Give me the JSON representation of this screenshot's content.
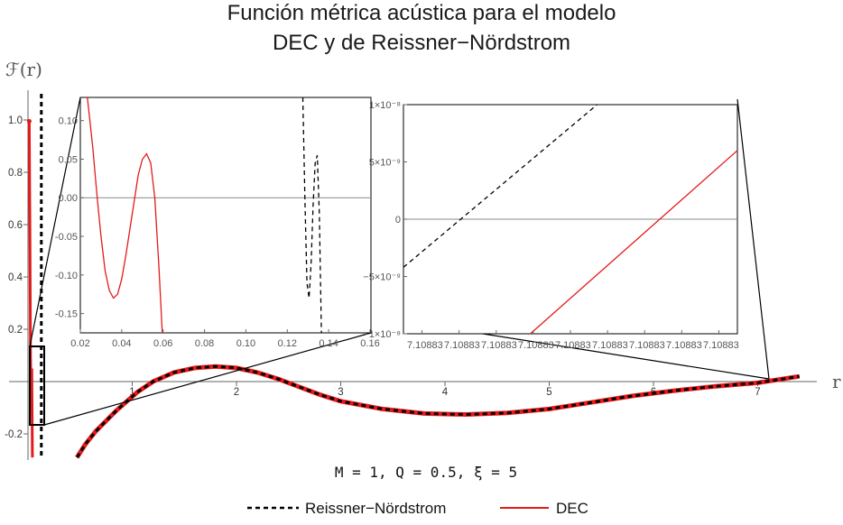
{
  "chart_data": [
    {
      "id": "main",
      "type": "line",
      "title_lines": [
        "Función métrica acústica para el modelo",
        "DEC y de Reissner−Nördstrom"
      ],
      "ylabel": "ℱ(r)",
      "xlabel": "r",
      "xlim": [
        0,
        7.5
      ],
      "ylim": [
        -0.29,
        1.1
      ],
      "xticks": [
        1,
        2,
        3,
        4,
        5,
        6,
        7
      ],
      "yticks": [
        -0.2,
        0.2,
        0.4,
        0.6,
        0.8,
        1.0
      ],
      "ytick_labels": [
        "-0.2",
        "0.2",
        "0.4",
        "0.6",
        "0.8",
        "1.0"
      ],
      "series": [
        {
          "name": "Reissner−Nördstrom",
          "style": "dashed",
          "color": "#000000",
          "x": [
            0.47,
            0.55,
            0.65,
            0.75,
            0.85,
            0.95,
            1.05,
            1.2,
            1.4,
            1.6,
            1.8,
            2.0,
            2.2,
            2.4,
            2.6,
            2.8,
            3.0,
            3.4,
            3.8,
            4.2,
            4.6,
            5.0,
            5.4,
            5.8,
            6.2,
            6.6,
            7.0,
            7.4
          ],
          "y": [
            -0.29,
            -0.24,
            -0.19,
            -0.15,
            -0.11,
            -0.075,
            -0.04,
            0.0,
            0.035,
            0.052,
            0.058,
            0.052,
            0.035,
            0.01,
            -0.02,
            -0.05,
            -0.075,
            -0.105,
            -0.122,
            -0.126,
            -0.12,
            -0.105,
            -0.08,
            -0.055,
            -0.035,
            -0.018,
            -0.005,
            0.02
          ]
        },
        {
          "name": "DEC",
          "style": "solid",
          "color": "#e41a1a",
          "x": [
            0.47,
            0.55,
            0.65,
            0.75,
            0.85,
            0.95,
            1.05,
            1.2,
            1.4,
            1.6,
            1.8,
            2.0,
            2.2,
            2.4,
            2.6,
            2.8,
            3.0,
            3.4,
            3.8,
            4.2,
            4.6,
            5.0,
            5.4,
            5.8,
            6.2,
            6.6,
            7.0,
            7.4
          ],
          "y": [
            -0.29,
            -0.24,
            -0.19,
            -0.15,
            -0.11,
            -0.075,
            -0.04,
            0.0,
            0.035,
            0.052,
            0.058,
            0.052,
            0.035,
            0.01,
            -0.02,
            -0.05,
            -0.075,
            -0.105,
            -0.122,
            -0.126,
            -0.12,
            -0.105,
            -0.08,
            -0.055,
            -0.035,
            -0.018,
            -0.005,
            0.02
          ]
        }
      ]
    },
    {
      "id": "inset-left",
      "type": "line",
      "xlim": [
        0.02,
        0.16
      ],
      "ylim": [
        -0.175,
        0.13
      ],
      "xticks": [
        0.02,
        0.04,
        0.06,
        0.08,
        0.1,
        0.12,
        0.14,
        0.16
      ],
      "xtick_labels": [
        "0.02",
        "0.04",
        "0.06",
        "0.08",
        "0.10",
        "0.12",
        "0.14",
        "0.16"
      ],
      "yticks": [
        -0.15,
        -0.1,
        -0.05,
        0.0,
        0.05,
        0.1
      ],
      "ytick_labels": [
        "-0.15",
        "-0.10",
        "-0.05",
        "0.00",
        "0.05",
        "0.10"
      ],
      "series": [
        {
          "name": "DEC",
          "style": "solid",
          "color": "#e41a1a",
          "x": [
            0.0234,
            0.026,
            0.028,
            0.03,
            0.032,
            0.034,
            0.036,
            0.038,
            0.04,
            0.042,
            0.044,
            0.046,
            0.048,
            0.05,
            0.052,
            0.054,
            0.056,
            0.058,
            0.0596
          ],
          "y": [
            0.13,
            0.065,
            0.005,
            -0.05,
            -0.095,
            -0.12,
            -0.13,
            -0.125,
            -0.105,
            -0.075,
            -0.04,
            -0.005,
            0.03,
            0.05,
            0.057,
            0.045,
            0.0,
            -0.09,
            -0.175
          ]
        },
        {
          "name": "Reissner−Nördstrom",
          "style": "dashed",
          "color": "#000000",
          "x": [
            0.1275,
            0.1285,
            0.1295,
            0.1305,
            0.1315,
            0.1325,
            0.1335,
            0.1345,
            0.1355,
            0.1365
          ],
          "y": [
            0.13,
            0.0,
            -0.11,
            -0.13,
            -0.085,
            -0.01,
            0.045,
            0.055,
            -0.02,
            -0.175
          ]
        }
      ]
    },
    {
      "id": "inset-right",
      "type": "line",
      "xtick_labels": [
        "7.10883",
        "7.10883",
        "7.10883",
        "7.10883",
        "7.10883",
        "7.10883",
        "7.10883",
        "7.10883",
        "7.10883"
      ],
      "ytick_labels": [
        "1×10⁻⁸",
        "5×10⁻⁹",
        "0",
        "−5×10⁻⁹",
        "−1×10⁻⁸"
      ],
      "yticks": [
        1e-08,
        5e-09,
        0,
        -5e-09,
        -1e-08
      ],
      "ylim": [
        -1e-08,
        1e-08
      ],
      "series": [
        {
          "name": "Reissner−Nördstrom",
          "style": "dashed",
          "color": "#000000",
          "x": [
            0.0,
            0.58
          ],
          "y": [
            -4.2e-09,
            1e-08
          ]
        },
        {
          "name": "DEC",
          "style": "solid",
          "color": "#e41a1a",
          "x": [
            0.38,
            1.0
          ],
          "y": [
            -1e-08,
            6e-09
          ]
        }
      ]
    }
  ],
  "params_text": "M = 1, Q = 0.5, ξ = 5",
  "legend": [
    {
      "name": "Reissner−Nördstrom",
      "style": "dashed",
      "color": "#000000"
    },
    {
      "name": "DEC",
      "style": "solid",
      "color": "#e41a1a"
    }
  ]
}
